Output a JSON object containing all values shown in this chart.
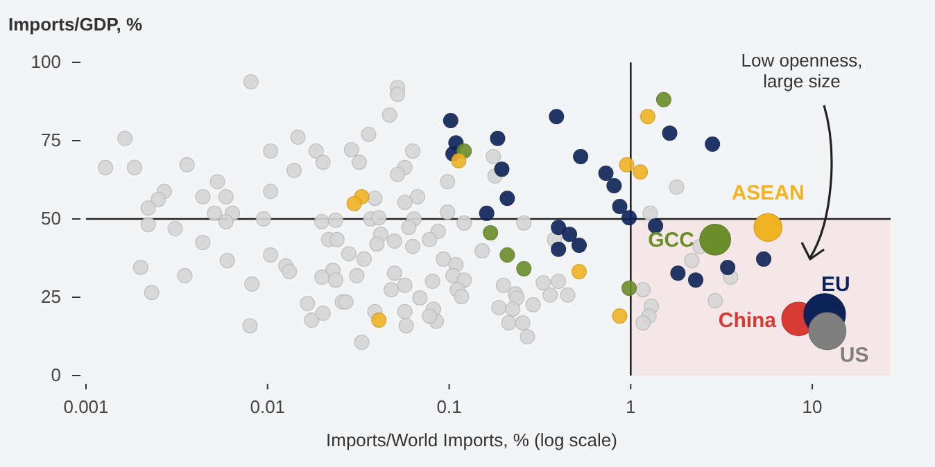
{
  "chart_data": {
    "type": "scatter",
    "xlabel": "Imports/World Imports, % (log scale)",
    "ylabel": "Imports/GDP, %",
    "log": "x",
    "xlim": [
      0.001,
      27
    ],
    "xticks": [
      0.001,
      0.01,
      0.1,
      1,
      10
    ],
    "ylim": [
      0,
      100
    ],
    "yticks": [
      0,
      25,
      50,
      75,
      100
    ],
    "marker": "circle",
    "ref_lines": [
      {
        "axis": "x",
        "value": 1,
        "color": "#222222"
      },
      {
        "axis": "y",
        "value": 50,
        "color": "#222222"
      }
    ],
    "bands": [
      {
        "axis": "x",
        "from": 1,
        "to": 27,
        "color": "#f5e6e8"
      }
    ],
    "annotations": [
      "Low openness,\nlarge size"
    ],
    "series": [
      {
        "color": "#d6d6d6",
        "x": [
          0.0081,
          0.00164,
          0.00128,
          0.00185,
          0.0036,
          0.0104,
          0.0147,
          0.0185,
          0.0202,
          0.014,
          0.0053,
          0.0027,
          0.0025,
          0.0022,
          0.0044,
          0.0059,
          0.0104,
          0.0051,
          0.0064,
          0.0059,
          0.0095,
          0.0022,
          0.0031,
          0.0199,
          0.0237,
          0.0044,
          0.0217,
          0.0241,
          0.006,
          0.0104,
          0.002,
          0.0126,
          0.0132,
          0.0035,
          0.0229,
          0.0199,
          0.0237,
          0.0082,
          0.0023,
          0.0166,
          0.0175,
          0.0202,
          0.008,
          0.0258,
          0.052,
          0.052,
          0.047,
          0.036,
          0.029,
          0.032,
          0.063,
          0.057,
          0.052,
          0.098,
          0.175,
          0.179,
          0.067,
          0.057,
          0.039,
          0.098,
          0.037,
          0.041,
          0.064,
          0.121,
          0.258,
          0.042,
          0.087,
          0.06,
          0.04,
          0.05,
          0.078,
          0.063,
          0.028,
          0.034,
          0.093,
          0.109,
          0.152,
          0.38,
          0.031,
          0.05,
          0.081,
          0.105,
          0.121,
          0.057,
          0.048,
          0.069,
          0.111,
          0.117,
          0.199,
          0.232,
          0.236,
          0.33,
          0.4,
          0.36,
          0.45,
          0.027,
          0.039,
          0.057,
          0.082,
          0.085,
          0.078,
          0.058,
          0.188,
          0.224,
          0.29,
          0.213,
          0.254,
          0.27,
          0.033,
          1.79,
          1.28,
          2.41,
          2.17,
          3.55,
          1.17,
          1.3,
          1.26,
          1.17,
          2.92
        ],
        "values": [
          93.8,
          75.7,
          66.4,
          66.4,
          67.3,
          71.7,
          76.1,
          71.7,
          68.1,
          65.5,
          61.9,
          58.8,
          56.2,
          53.5,
          57.1,
          57.1,
          58.8,
          51.8,
          51.8,
          49.1,
          50,
          48.2,
          46.9,
          49.1,
          49.6,
          42.5,
          43.4,
          43.4,
          36.7,
          38.5,
          34.5,
          35,
          33.2,
          31.9,
          33.6,
          31.4,
          30.5,
          29.2,
          26.5,
          23,
          17.7,
          19.9,
          15.9,
          23.5,
          92,
          89.8,
          83.2,
          77,
          72.1,
          68.1,
          71.7,
          66.4,
          64.2,
          61.9,
          69.9,
          63.7,
          57.1,
          55.3,
          56.6,
          52.2,
          50,
          50.4,
          50,
          48.7,
          48.7,
          45.1,
          46,
          47.3,
          42,
          42.9,
          43.4,
          41.2,
          38.9,
          37.2,
          37.2,
          35.4,
          39.8,
          43.4,
          31.9,
          32.7,
          30.1,
          31.9,
          30.5,
          28.8,
          27.4,
          24.8,
          27.4,
          25.2,
          28.8,
          26.1,
          24.8,
          29.6,
          30.1,
          25.7,
          25.7,
          23.5,
          20.4,
          20.4,
          21.2,
          17.3,
          19,
          15.9,
          21.7,
          21.2,
          22.6,
          16.8,
          16.8,
          12.4,
          10.6,
          60.2,
          51.8,
          41.2,
          36.7,
          31.4,
          27.4,
          22.1,
          19,
          16.8,
          23.9
        ]
      },
      {
        "color": "#0d2358",
        "x": [
          0.102,
          0.39,
          0.109,
          0.105,
          0.185,
          0.53,
          0.195,
          0.73,
          0.81,
          0.209,
          0.161,
          0.87,
          0.4,
          0.46,
          0.52,
          0.4,
          1.64,
          2.82,
          0.98,
          1.37,
          5.4,
          3.42,
          1.82,
          2.28
        ],
        "values": [
          81.4,
          82.7,
          74.3,
          70.8,
          75.7,
          69.9,
          65.9,
          64.6,
          60.6,
          56.6,
          51.8,
          54,
          47.3,
          45.1,
          41.6,
          40.3,
          77.4,
          73.9,
          50.4,
          47.8,
          37.2,
          34.5,
          32.7,
          30.5
        ]
      },
      {
        "color": "#6b8e2a",
        "x": [
          0.121,
          0.169,
          0.209,
          0.258,
          1.52,
          0.98
        ],
        "values": [
          71.7,
          45.6,
          38.5,
          34.1,
          88.1,
          27.9
        ]
      },
      {
        "color": "#f0b323",
        "x": [
          0.113,
          0.033,
          0.03,
          0.52,
          0.041,
          0.87,
          1.24,
          0.95,
          1.13
        ],
        "values": [
          68.6,
          57.1,
          54.9,
          33.2,
          17.7,
          19,
          82.7,
          67.3,
          65
        ]
      },
      {
        "type": "bubble",
        "name": "ASEAN",
        "color": "#f0b323",
        "x": [
          5.7
        ],
        "values": [
          47.3
        ],
        "sizes": [
          0.45
        ]
      },
      {
        "type": "bubble",
        "name": "GCC",
        "color": "#6b8e2a",
        "x": [
          2.92
        ],
        "values": [
          43.4
        ],
        "sizes": [
          0.55
        ]
      },
      {
        "type": "bubble",
        "name": "China",
        "color": "#d83a34",
        "x": [
          8.4
        ],
        "values": [
          18.1
        ],
        "sizes": [
          0.65
        ]
      },
      {
        "type": "bubble",
        "name": "EU",
        "color": "#0d2358",
        "x": [
          11.7
        ],
        "values": [
          19.5
        ],
        "sizes": [
          1
        ]
      },
      {
        "type": "bubble",
        "name": "US",
        "color": "#7f7f7f",
        "x": [
          12.1
        ],
        "values": [
          14.2
        ],
        "sizes": [
          0.8
        ]
      }
    ]
  }
}
